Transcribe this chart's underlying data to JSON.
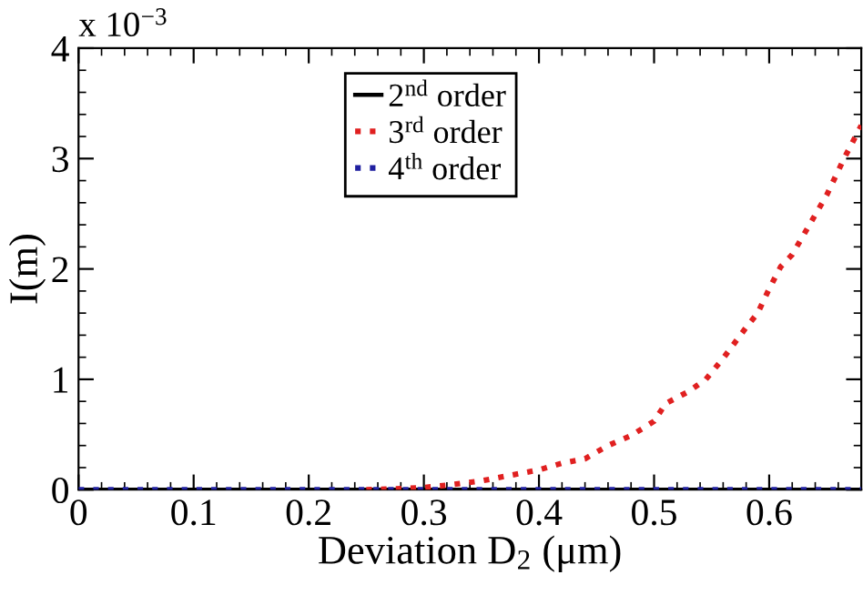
{
  "chart_data": {
    "type": "line",
    "xlabel": "Deviation D$_{2}$ (μm)",
    "ylabel": "I(m)",
    "annotations": [
      "x 10$^{−3}$"
    ],
    "xlim": [
      0,
      0.68
    ],
    "xticks": [
      0,
      0.1,
      0.2,
      0.3,
      0.4,
      0.5,
      0.6
    ],
    "ylim": [
      0,
      4
    ],
    "yticks": [
      0,
      1,
      2,
      3,
      4
    ],
    "legend": "top",
    "grid": false,
    "series": [
      {
        "name": "2$^{nd}$ order",
        "color": "#000000",
        "line_style": "solid",
        "x": [
          0,
          0.68
        ],
        "values": [
          0,
          0
        ]
      },
      {
        "name": "3$^{rd}$ order",
        "color": "#e02020",
        "line_style": "dotted",
        "x": [
          0.25,
          0.28,
          0.3,
          0.32,
          0.35,
          0.38,
          0.4,
          0.42,
          0.44,
          0.46,
          0.48,
          0.5,
          0.51,
          0.53,
          0.545,
          0.56,
          0.58,
          0.59,
          0.6,
          0.61,
          0.62,
          0.635,
          0.65,
          0.665,
          0.68
        ],
        "values": [
          0,
          0.01,
          0.02,
          0.04,
          0.08,
          0.14,
          0.18,
          0.24,
          0.28,
          0.4,
          0.49,
          0.62,
          0.78,
          0.89,
          1.0,
          1.19,
          1.47,
          1.6,
          1.82,
          2.02,
          2.13,
          2.4,
          2.67,
          3.0,
          3.3
        ]
      },
      {
        "name": "4$^{th}$ order",
        "color": "#2020a0",
        "line_style": "dotted",
        "x": [
          0,
          0.68
        ],
        "values": [
          0,
          0
        ]
      }
    ]
  }
}
